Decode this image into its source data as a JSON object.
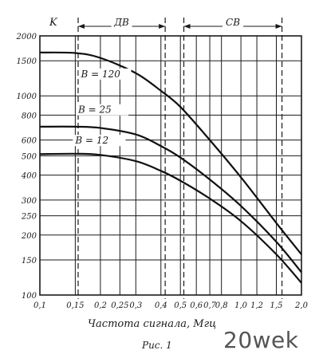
{
  "chart_data": {
    "type": "line",
    "title": "",
    "xlabel": "Частота сигнала, Мгц",
    "ylabel": "K",
    "x_scale": "log",
    "y_scale": "log",
    "xlim": [
      0.1,
      2.0
    ],
    "ylim": [
      100,
      2000
    ],
    "x_ticks": [
      "0,1",
      "0,15",
      "0,2",
      "0,25",
      "0,3",
      "0,4",
      "0,5",
      "0,6",
      "0,7",
      "0,8",
      "1,0",
      "1,2",
      "1,5",
      "2,0"
    ],
    "x_tick_values": [
      0.1,
      0.15,
      0.2,
      0.25,
      0.3,
      0.4,
      0.5,
      0.6,
      0.7,
      0.8,
      1.0,
      1.2,
      1.5,
      2.0
    ],
    "y_ticks": [
      "100",
      "150",
      "200",
      "250",
      "300",
      "400",
      "500",
      "600",
      "800",
      "1000",
      "1500",
      "2000"
    ],
    "y_tick_values": [
      100,
      150,
      200,
      250,
      300,
      400,
      500,
      600,
      800,
      1000,
      1500,
      2000
    ],
    "grid": true,
    "bands": [
      {
        "label": "ДВ",
        "from": 0.155,
        "to": 0.42
      },
      {
        "label": "СВ",
        "from": 0.52,
        "to": 1.6
      }
    ],
    "series": [
      {
        "name": "B = 120",
        "x": [
          0.1,
          0.15,
          0.2,
          0.3,
          0.4,
          0.5,
          0.7,
          1.0,
          1.5,
          2.0
        ],
        "values": [
          1650,
          1640,
          1550,
          1300,
          1060,
          880,
          600,
          390,
          230,
          160
        ]
      },
      {
        "name": "B = 25",
        "x": [
          0.1,
          0.15,
          0.2,
          0.3,
          0.4,
          0.5,
          0.7,
          1.0,
          1.5,
          2.0
        ],
        "values": [
          700,
          700,
          690,
          640,
          560,
          490,
          380,
          280,
          185,
          130
        ]
      },
      {
        "name": "B = 12",
        "x": [
          0.1,
          0.15,
          0.2,
          0.3,
          0.4,
          0.5,
          0.7,
          1.0,
          1.5,
          2.0
        ],
        "values": [
          510,
          512,
          505,
          470,
          420,
          375,
          305,
          235,
          160,
          115
        ]
      }
    ]
  },
  "caption": "Рис. 1",
  "watermark": "20wek"
}
